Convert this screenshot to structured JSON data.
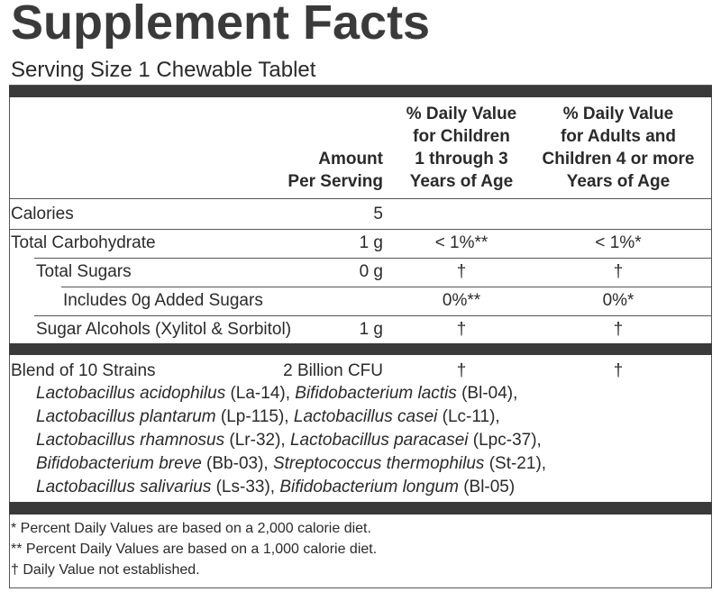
{
  "title": "Supplement Facts",
  "serving_size": "Serving Size 1 Chewable Tablet",
  "header": {
    "amount": [
      "Amount",
      "Per Serving"
    ],
    "children": [
      "% Daily Value",
      "for Children",
      "1 through 3",
      "Years of Age"
    ],
    "adults": [
      "% Daily Value",
      "for Adults and",
      "Children 4 or more",
      "Years of Age"
    ]
  },
  "rows": [
    [
      "Calories",
      "5",
      "",
      ""
    ],
    [
      "Total Carbohydrate",
      "1 g",
      "< 1%**",
      "< 1%*"
    ],
    [
      "Total Sugars",
      "0 g",
      "†",
      "†"
    ],
    [
      "Includes 0g Added Sugars",
      "",
      "0%**",
      "0%*"
    ],
    [
      "Sugar Alcohols (Xylitol & Sorbitol)",
      "1 g",
      "†",
      "†"
    ]
  ],
  "blend": {
    "name": "Blend of 10 Strains",
    "amount": "2 Billion CFU",
    "children": "†",
    "adults": "†",
    "strains": [
      [
        {
          "name": "Lactobacillus acidophilus",
          "code": "(La-14),"
        },
        {
          "name": "Bifidobacterium lactis",
          "code": "(Bl-04),"
        }
      ],
      [
        {
          "name": "Lactobacillus plantarum",
          "code": "(Lp-115),"
        },
        {
          "name": "Lactobacillus casei",
          "code": "(Lc-11),"
        }
      ],
      [
        {
          "name": "Lactobacillus rhamnosus",
          "code": "(Lr-32),"
        },
        {
          "name": "Lactobacillus paracasei",
          "code": "(Lpc-37),"
        }
      ],
      [
        {
          "name": "Bifidobacterium breve",
          "code": "(Bb-03),"
        },
        {
          "name": "Streptococcus thermophilus",
          "code": "(St-21),"
        }
      ],
      [
        {
          "name": "Lactobacillus salivarius",
          "code": "(Ls-33),"
        },
        {
          "name": "Bifidobacterium longum",
          "code": "(Bl-05)"
        }
      ]
    ]
  },
  "footnotes": [
    "* Percent Daily Values are based on a 2,000 calorie diet.",
    "** Percent Daily Values are based on a 1,000 calorie diet.",
    "† Daily Value not established."
  ]
}
